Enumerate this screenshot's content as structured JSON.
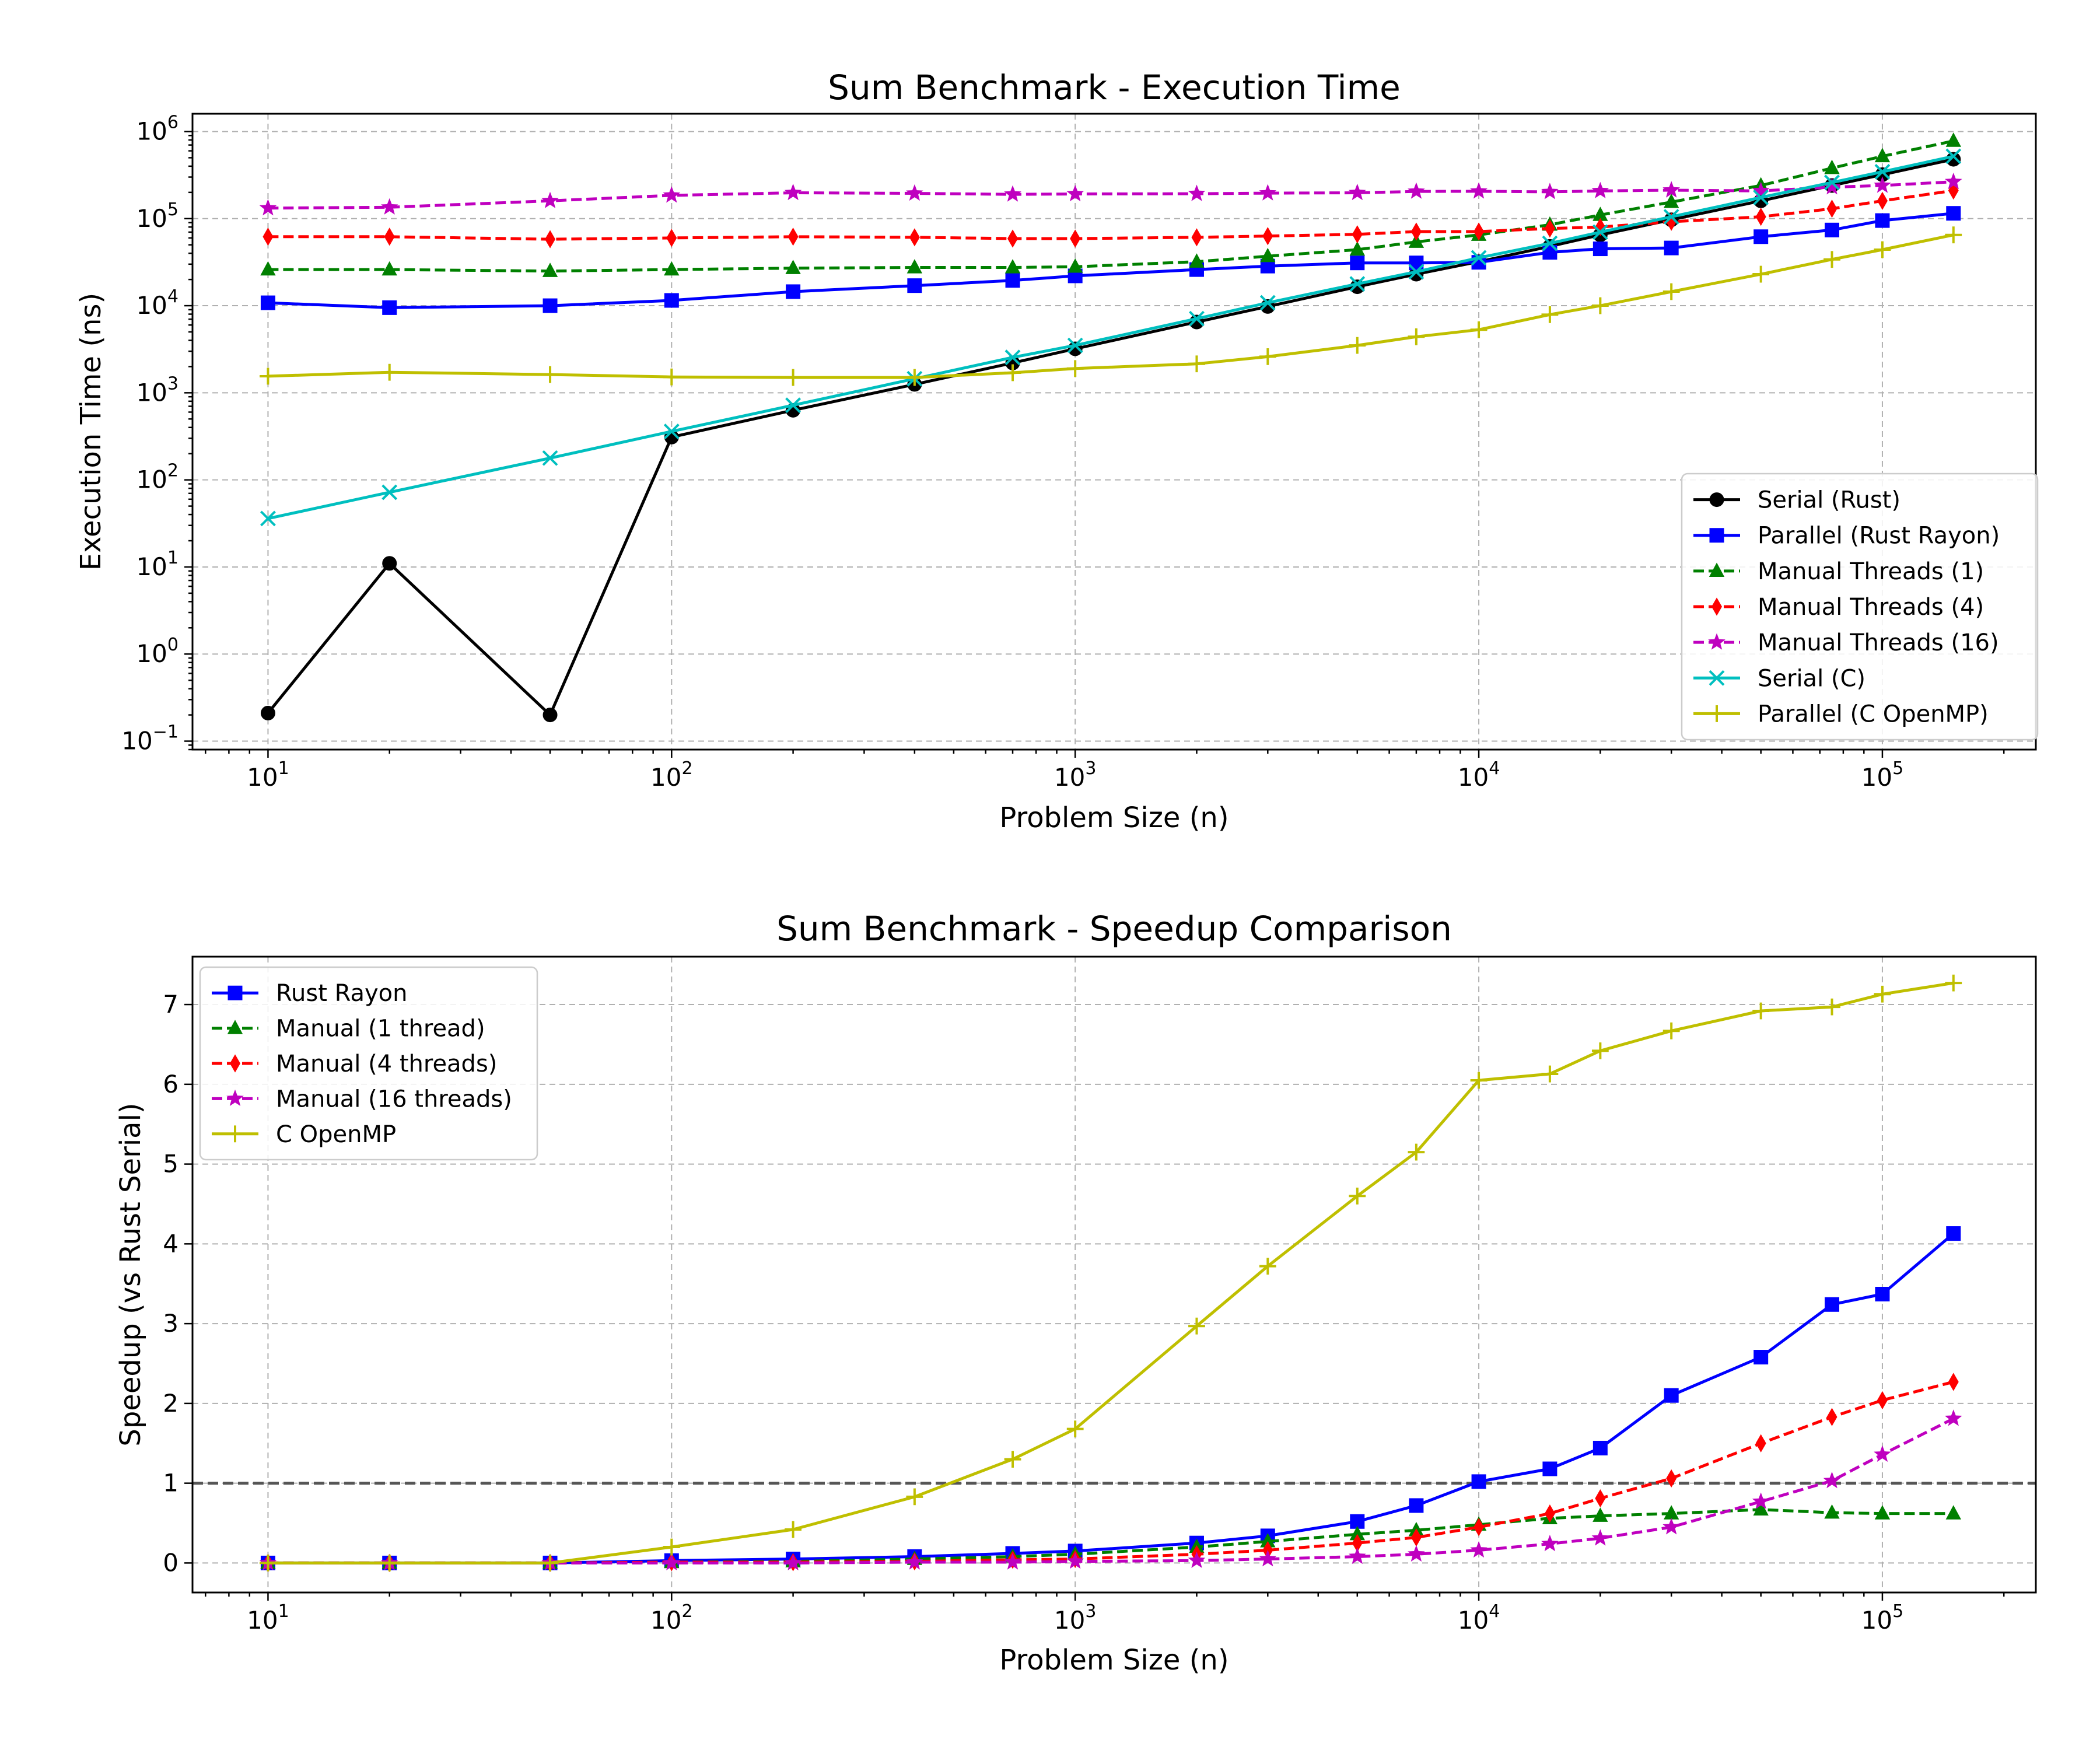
{
  "chart_data": [
    {
      "type": "line",
      "title": "Sum Benchmark - Execution Time",
      "xlabel": "Problem Size (n)",
      "ylabel": "Execution Time (ns)",
      "xscale": "log",
      "yscale": "log",
      "xlim": [
        6.5,
        240000
      ],
      "ylim": [
        0.08,
        1600000
      ],
      "xticks": [
        {
          "base": "10",
          "exp": "1",
          "value": 10
        },
        {
          "base": "10",
          "exp": "2",
          "value": 100
        },
        {
          "base": "10",
          "exp": "3",
          "value": 1000
        },
        {
          "base": "10",
          "exp": "4",
          "value": 10000
        },
        {
          "base": "10",
          "exp": "5",
          "value": 100000
        }
      ],
      "yticks": [
        {
          "base": "10",
          "exp": "−1",
          "value": 0.1
        },
        {
          "base": "10",
          "exp": "0",
          "value": 1
        },
        {
          "base": "10",
          "exp": "1",
          "value": 10
        },
        {
          "base": "10",
          "exp": "2",
          "value": 100
        },
        {
          "base": "10",
          "exp": "3",
          "value": 1000
        },
        {
          "base": "10",
          "exp": "4",
          "value": 10000
        },
        {
          "base": "10",
          "exp": "5",
          "value": 100000
        },
        {
          "base": "10",
          "exp": "6",
          "value": 1000000
        }
      ],
      "grid": true,
      "legend_position": "lower right",
      "x": [
        10,
        20,
        50,
        100,
        200,
        400,
        700,
        1000,
        2000,
        3000,
        5000,
        7000,
        10000,
        15000,
        20000,
        30000,
        50000,
        75000,
        100000,
        150000
      ],
      "series": [
        {
          "name": "Serial (Rust)",
          "color": "#000000",
          "dash": false,
          "marker": "circle",
          "values": [
            0.21,
            11,
            0.2,
            310,
            630,
            1250,
            2200,
            3200,
            6500,
            9800,
            16500,
            23000,
            32000,
            48000,
            65000,
            97000,
            160000,
            240000,
            320000,
            480000
          ]
        },
        {
          "name": "Parallel (Rust Rayon)",
          "color": "#0000ff",
          "dash": false,
          "marker": "square",
          "values": [
            10800,
            9500,
            10000,
            11500,
            14500,
            17000,
            19500,
            22000,
            26000,
            28500,
            31000,
            31000,
            31500,
            41000,
            45000,
            46000,
            62000,
            74000,
            95000,
            115000
          ]
        },
        {
          "name": "Manual Threads (1)",
          "color": "#008000",
          "dash": true,
          "marker": "triangle",
          "values": [
            26000,
            26000,
            25000,
            26000,
            27000,
            27500,
            27500,
            28000,
            32000,
            37000,
            44000,
            54000,
            65000,
            85000,
            110000,
            155000,
            240000,
            380000,
            520000,
            780000
          ]
        },
        {
          "name": "Manual Threads (4)",
          "color": "#ff0000",
          "dash": true,
          "marker": "diamond",
          "values": [
            62000,
            62000,
            58000,
            60000,
            62000,
            61000,
            59000,
            59000,
            61000,
            63000,
            66000,
            71000,
            71000,
            77000,
            80000,
            92000,
            105000,
            130000,
            160000,
            210000
          ]
        },
        {
          "name": "Manual Threads (16)",
          "color": "#bf00bf",
          "dash": true,
          "marker": "star",
          "values": [
            132000,
            135000,
            160000,
            185000,
            198000,
            195000,
            190000,
            192000,
            193000,
            196000,
            198000,
            205000,
            206000,
            203000,
            208000,
            212000,
            208000,
            230000,
            240000,
            265000
          ]
        },
        {
          "name": "Serial (C)",
          "color": "#00bfbf",
          "dash": false,
          "marker": "x",
          "values": [
            36,
            72,
            178,
            360,
            720,
            1450,
            2550,
            3500,
            7100,
            10800,
            17800,
            24500,
            35500,
            52000,
            70000,
            105000,
            175000,
            260000,
            345000,
            520000
          ]
        },
        {
          "name": "Parallel (C OpenMP)",
          "color": "#bfbf00",
          "dash": false,
          "marker": "plus",
          "values": [
            1550,
            1720,
            1620,
            1520,
            1500,
            1500,
            1700,
            1900,
            2150,
            2600,
            3500,
            4400,
            5300,
            7900,
            10000,
            14500,
            23000,
            34000,
            44000,
            65000
          ]
        }
      ]
    },
    {
      "type": "line",
      "title": "Sum Benchmark - Speedup Comparison",
      "xlabel": "Problem Size (n)",
      "ylabel": "Speedup (vs Rust Serial)",
      "xscale": "log",
      "yscale": "linear",
      "xlim": [
        6.5,
        240000
      ],
      "ylim": [
        -0.37,
        7.6
      ],
      "xticks": [
        {
          "base": "10",
          "exp": "1",
          "value": 10
        },
        {
          "base": "10",
          "exp": "2",
          "value": 100
        },
        {
          "base": "10",
          "exp": "3",
          "value": 1000
        },
        {
          "base": "10",
          "exp": "4",
          "value": 10000
        },
        {
          "base": "10",
          "exp": "5",
          "value": 100000
        }
      ],
      "yticks": [
        {
          "label": "0",
          "value": 0
        },
        {
          "label": "1",
          "value": 1
        },
        {
          "label": "2",
          "value": 2
        },
        {
          "label": "3",
          "value": 3
        },
        {
          "label": "4",
          "value": 4
        },
        {
          "label": "5",
          "value": 5
        },
        {
          "label": "6",
          "value": 6
        },
        {
          "label": "7",
          "value": 7
        }
      ],
      "grid": true,
      "legend_position": "upper left",
      "reference_line": {
        "y": 1,
        "color": "#555555"
      },
      "x": [
        10,
        20,
        50,
        100,
        200,
        400,
        700,
        1000,
        2000,
        3000,
        5000,
        7000,
        10000,
        15000,
        20000,
        30000,
        50000,
        75000,
        100000,
        150000
      ],
      "series": [
        {
          "name": "Rust Rayon",
          "color": "#0000ff",
          "dash": false,
          "marker": "square",
          "values": [
            0.0,
            0.0,
            0.0,
            0.03,
            0.05,
            0.08,
            0.12,
            0.15,
            0.25,
            0.34,
            0.52,
            0.72,
            1.02,
            1.18,
            1.44,
            2.1,
            2.58,
            3.24,
            3.37,
            4.13
          ]
        },
        {
          "name": "Manual (1 thread)",
          "color": "#008000",
          "dash": true,
          "marker": "triangle",
          "values": [
            0.0,
            0.0,
            0.0,
            0.01,
            0.02,
            0.05,
            0.08,
            0.11,
            0.2,
            0.27,
            0.36,
            0.41,
            0.48,
            0.56,
            0.59,
            0.62,
            0.67,
            0.63,
            0.62,
            0.62
          ]
        },
        {
          "name": "Manual (4 threads)",
          "color": "#ff0000",
          "dash": true,
          "marker": "diamond",
          "values": [
            0.0,
            0.0,
            0.0,
            0.01,
            0.01,
            0.02,
            0.04,
            0.05,
            0.11,
            0.16,
            0.25,
            0.32,
            0.45,
            0.62,
            0.81,
            1.06,
            1.5,
            1.83,
            2.04,
            2.27
          ]
        },
        {
          "name": "Manual (16 threads)",
          "color": "#bf00bf",
          "dash": true,
          "marker": "star",
          "values": [
            0.0,
            0.0,
            0.0,
            0.0,
            0.0,
            0.01,
            0.01,
            0.02,
            0.03,
            0.05,
            0.08,
            0.11,
            0.16,
            0.24,
            0.31,
            0.45,
            0.77,
            1.03,
            1.36,
            1.81
          ]
        },
        {
          "name": "C OpenMP",
          "color": "#bfbf00",
          "dash": false,
          "marker": "plus",
          "values": [
            0.0,
            0.0,
            0.0,
            0.2,
            0.42,
            0.83,
            1.3,
            1.68,
            2.97,
            3.72,
            4.6,
            5.15,
            6.05,
            6.13,
            6.42,
            6.67,
            6.92,
            6.97,
            7.13,
            7.27
          ]
        }
      ]
    }
  ]
}
